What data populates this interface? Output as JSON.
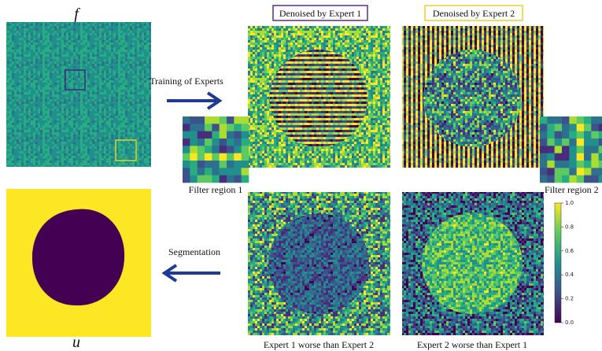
{
  "figure": {
    "input_label": "f",
    "output_label": "u",
    "training_arrow_label": "Training of Experts",
    "segmentation_arrow_label": "Segmentation",
    "expert1_title": "Denoised by Expert 1",
    "expert2_title": "Denoised by Expert 2",
    "filter1_label": "Filter region 1",
    "filter2_label": "Filter region 2",
    "caption1": "Expert 1 worse than Expert 2",
    "caption2": "Expert 2 worse than Expert 1",
    "colorbar": {
      "ylim": [
        0,
        1
      ],
      "yticks": [
        {
          "value": 0,
          "label": "0.0"
        },
        {
          "value": 0.2,
          "label": "0.2"
        },
        {
          "value": 0.4,
          "label": "0.4"
        },
        {
          "value": 0.6,
          "label": "0.6"
        },
        {
          "value": 0.8,
          "label": "0.8"
        },
        {
          "value": 1,
          "label": "1.0"
        }
      ]
    }
  }
}
